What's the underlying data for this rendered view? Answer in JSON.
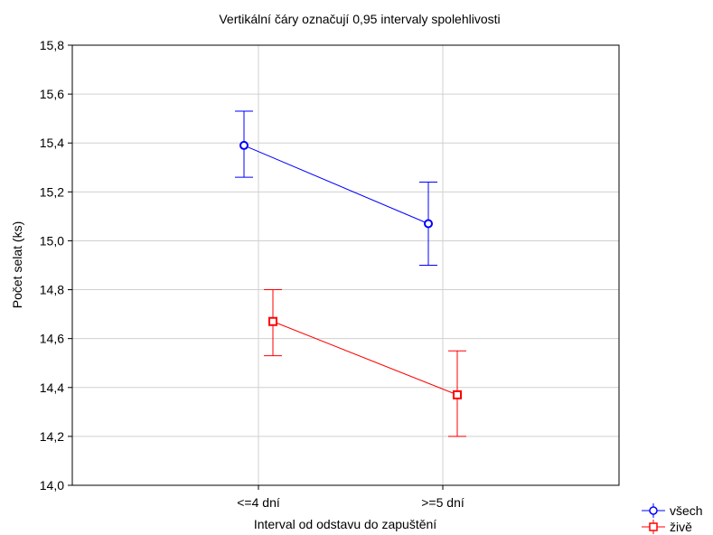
{
  "chart_data": {
    "type": "line",
    "title": "Vertikální čáry označují 0,95 intervaly spolehlivosti",
    "xlabel": "Interval od odstavu do zapuštění",
    "ylabel": "Počet selat (ks)",
    "categories": [
      "<=4 dní",
      ">=5 dní"
    ],
    "ylim": [
      14.0,
      15.8
    ],
    "yticks": [
      "14,0",
      "14,2",
      "14,4",
      "14,6",
      "14,8",
      "15,0",
      "15,2",
      "15,4",
      "15,6",
      "15,8"
    ],
    "grid": true,
    "legend_position": "bottom-right",
    "series": [
      {
        "name": "všech",
        "color": "#0000ff",
        "marker": "circle",
        "values": [
          15.39,
          15.07
        ],
        "ci_low": [
          15.26,
          14.9
        ],
        "ci_high": [
          15.53,
          15.24
        ]
      },
      {
        "name": "živě",
        "color": "#ff0000",
        "marker": "square",
        "values": [
          14.67,
          14.37
        ],
        "ci_low": [
          14.53,
          14.2
        ],
        "ci_high": [
          14.8,
          14.55
        ]
      }
    ]
  }
}
